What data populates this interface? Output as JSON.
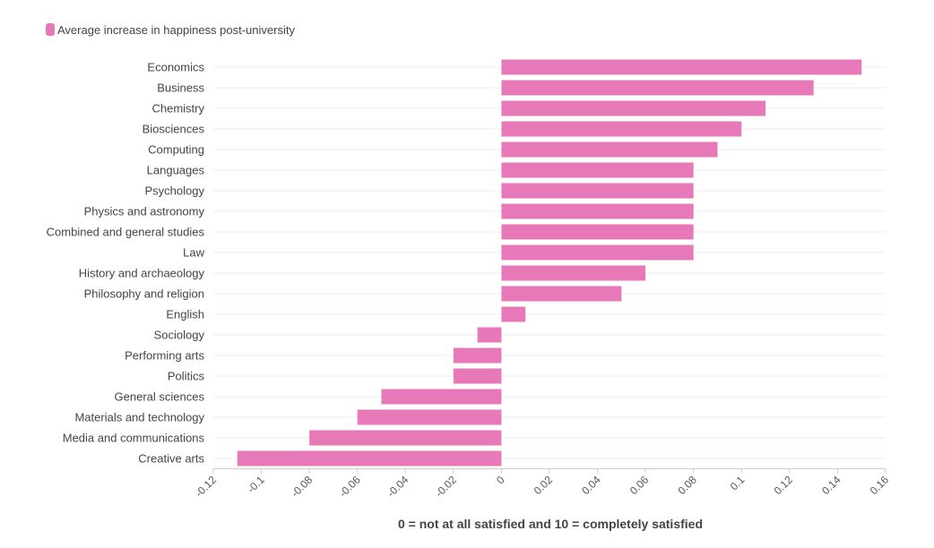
{
  "legend": {
    "label": "Average increase in happiness post-university"
  },
  "colors": {
    "bar": "#e879b9",
    "grid": "#ececec",
    "axis": "#cccccc"
  },
  "chart_data": {
    "type": "bar",
    "orientation": "horizontal",
    "categories": [
      "Economics",
      "Business",
      "Chemistry",
      "Biosciences",
      "Computing",
      "Languages",
      "Psychology",
      "Physics and astronomy",
      "Combined and general studies",
      "Law",
      "History and archaeology",
      "Philosophy and religion",
      "English",
      "Sociology",
      "Performing arts",
      "Politics",
      "General sciences",
      "Materials and technology",
      "Media and communications",
      "Creative arts"
    ],
    "series": [
      {
        "name": "Average increase in happiness post-university",
        "values": [
          0.15,
          0.13,
          0.11,
          0.1,
          0.09,
          0.08,
          0.08,
          0.08,
          0.08,
          0.08,
          0.06,
          0.05,
          0.01,
          -0.01,
          -0.02,
          -0.02,
          -0.05,
          -0.06,
          -0.08,
          -0.11
        ]
      }
    ],
    "xlim": [
      -0.12,
      0.16
    ],
    "xticks": [
      -0.12,
      -0.1,
      -0.08,
      -0.06,
      -0.04,
      -0.02,
      0,
      0.02,
      0.04,
      0.06,
      0.08,
      0.1,
      0.12,
      0.14,
      0.16
    ],
    "xtick_labels": [
      "-0.12",
      "-0.1",
      "-0.08",
      "-0.06",
      "-0.04",
      "-0.02",
      "0",
      "0.02",
      "0.04",
      "0.06",
      "0.08",
      "0.1",
      "0.12",
      "0.14",
      "0.16"
    ],
    "xlabel": "0 = not at all satisfied and 10 = completely satisfied",
    "title": ""
  }
}
